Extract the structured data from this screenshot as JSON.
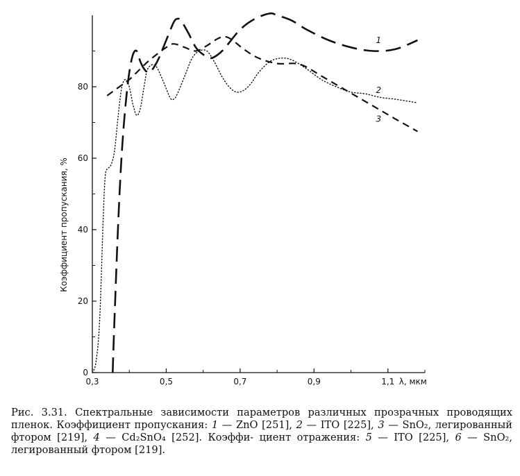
{
  "chart_data": {
    "type": "line",
    "ylabel": "Коэффициент пропускания, %",
    "xlabel": "λ, мкм",
    "xlim": [
      0.3,
      1.2
    ],
    "ylim": [
      0,
      100
    ],
    "x_ticks": [
      "0,3",
      "0,5",
      "0,7",
      "0,9",
      "1,1"
    ],
    "x_tick_values": [
      0.3,
      0.5,
      0.7,
      0.9,
      1.1
    ],
    "y_ticks": [
      "0",
      "20",
      "40",
      "60",
      "80"
    ],
    "y_tick_values": [
      0,
      20,
      40,
      60,
      80
    ],
    "series": [
      {
        "name": "1",
        "style": "long-dash",
        "x": [
          0.355,
          0.36,
          0.37,
          0.38,
          0.39,
          0.4,
          0.41,
          0.42,
          0.43,
          0.44,
          0.45,
          0.46,
          0.47,
          0.48,
          0.5,
          0.52,
          0.53,
          0.54,
          0.56,
          0.58,
          0.6,
          0.62,
          0.64,
          0.66,
          0.7,
          0.74,
          0.78,
          0.8,
          0.84,
          0.88,
          0.94,
          1.0,
          1.06,
          1.12,
          1.18
        ],
        "y": [
          0,
          15,
          42,
          62,
          75,
          84,
          89,
          90,
          87,
          85,
          84,
          84.5,
          86,
          88,
          93,
          98,
          99,
          98.5,
          95,
          91,
          89,
          88,
          89,
          91,
          96,
          99,
          100.5,
          100,
          98.5,
          96,
          93,
          91,
          90,
          90.5,
          93
        ]
      },
      {
        "name": "2",
        "style": "dotted",
        "x": [
          0.3,
          0.31,
          0.32,
          0.33,
          0.335,
          0.34,
          0.35,
          0.36,
          0.37,
          0.38,
          0.39,
          0.4,
          0.41,
          0.42,
          0.43,
          0.44,
          0.45,
          0.47,
          0.49,
          0.51,
          0.52,
          0.53,
          0.55,
          0.57,
          0.59,
          0.61,
          0.63,
          0.65,
          0.67,
          0.69,
          0.71,
          0.73,
          0.75,
          0.78,
          0.81,
          0.84,
          0.88,
          0.92,
          0.96,
          1.0,
          1.04,
          1.08,
          1.12,
          1.18
        ],
        "y": [
          0,
          3,
          15,
          45,
          55,
          57,
          58,
          62,
          72,
          80,
          82,
          80,
          75,
          72,
          74,
          80,
          85,
          86,
          82,
          77,
          76.5,
          78,
          83,
          88,
          90,
          90,
          87,
          83,
          80,
          78.5,
          79,
          81,
          84,
          87,
          88,
          87.5,
          85,
          82,
          80,
          78.5,
          78,
          77,
          76.5,
          75.5
        ]
      },
      {
        "name": "3",
        "style": "dashed",
        "x": [
          0.34,
          0.36,
          0.38,
          0.4,
          0.42,
          0.45,
          0.48,
          0.5,
          0.52,
          0.55,
          0.58,
          0.61,
          0.64,
          0.66,
          0.68,
          0.71,
          0.75,
          0.8,
          0.85,
          0.88,
          0.92,
          0.97,
          1.02,
          1.07,
          1.12,
          1.18
        ],
        "y": [
          77.5,
          79,
          80.5,
          82,
          84,
          87,
          89.5,
          91,
          92,
          91,
          90,
          91.5,
          93.5,
          94,
          93,
          90.5,
          88,
          86.5,
          86.5,
          85.5,
          83,
          80,
          77,
          74,
          71,
          67.5
        ]
      }
    ],
    "annotations": [
      {
        "text": "1",
        "x": 1.06,
        "y": 93
      },
      {
        "text": "2",
        "x": 1.06,
        "y": 79
      },
      {
        "text": "3",
        "x": 1.06,
        "y": 71
      }
    ]
  },
  "caption": {
    "line1": "Рис. 3.31. Спектральные зависимости параметров различных прозрачных",
    "line2": "проводящих пленок. Коэффициент пропускания:",
    "item1_num": "1",
    "item1_text": " — ZnO [251],",
    "item2_num": "2",
    "item2_text": " — ITO",
    "line3_start": "[225],",
    "item3_num": "3",
    "item3_text": " — SnO₂, легированный фтором [219],",
    "item4_num": "4",
    "item4_text": " — Cd₂SnO₄ [252]. Коэффи-",
    "line4_start": "циент отражения:",
    "item5_num": "5",
    "item5_text": " — ITO [225],",
    "item6_num": "6",
    "item6_text": " — SnO₂, легированный фтором [219]."
  }
}
